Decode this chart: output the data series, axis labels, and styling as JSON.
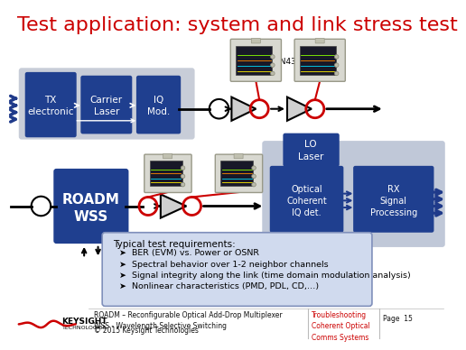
{
  "title": "Test application: system and link stress test",
  "title_color": "#CC0000",
  "bg_color": "#FFFFFF",
  "light_gray": "#C0C8D8",
  "arrow_blue": "#1F3A8A",
  "box_blue": "#1F3F8F",
  "text_white": "#FFFFFF",
  "text_black": "#111111",
  "red": "#CC0000",
  "footer_text_left": "ROADM – Reconfigurable Optical Add-Drop Multiplexer\nWSS - Wavelength Selective Switching",
  "footer_text_right": "Troubleshooting\nCoherent Optical\nComms Systems",
  "footer_page": "Page  15",
  "copyright": "© 2015 Keysight Technologies",
  "label_n4391": "N4391A or N4392A",
  "bullet_text": [
    "BER (EVM) vs. Power or OSNR",
    "Spectral behavior over 1-2 neighbor channels",
    "Signal integrity along the link (time domain modulation analysis)",
    "Nonlinear characteristics (PMD, PDL, CD,…)"
  ],
  "typical_header": "Typical test requirements:"
}
